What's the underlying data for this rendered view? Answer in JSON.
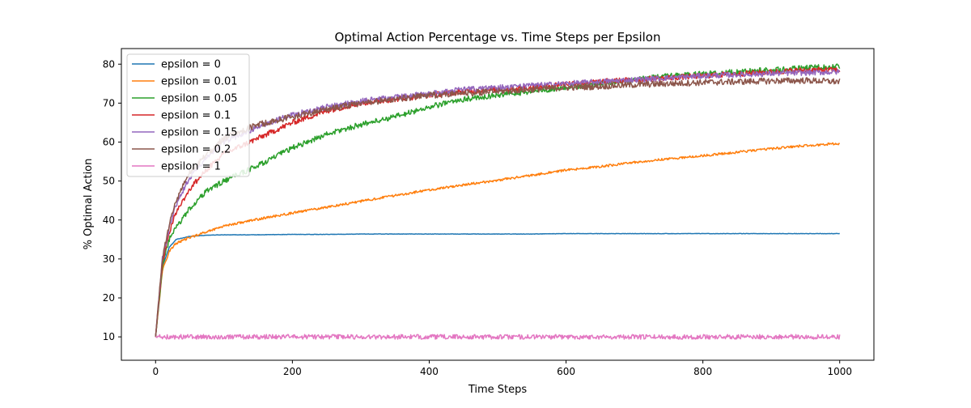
{
  "chart_data": {
    "type": "line",
    "title": "Optimal Action Percentage vs. Time Steps per Epsilon",
    "xlabel": "Time Steps",
    "ylabel": "% Optimal Action",
    "xlim": [
      -50,
      1050
    ],
    "ylim": [
      4,
      84
    ],
    "xticks": [
      0,
      200,
      400,
      600,
      800,
      1000
    ],
    "yticks": [
      10,
      20,
      30,
      40,
      50,
      60,
      70,
      80
    ],
    "grid": false,
    "legend_position": "upper left",
    "x": [
      0,
      10,
      20,
      30,
      50,
      75,
      100,
      150,
      200,
      250,
      300,
      350,
      400,
      450,
      500,
      550,
      600,
      650,
      700,
      750,
      800,
      850,
      900,
      950,
      1000
    ],
    "series": [
      {
        "name": "epsilon = 0",
        "color": "#1f77b4",
        "noise": 0.05,
        "values": [
          10,
          28,
          33,
          35,
          35.8,
          36.1,
          36.2,
          36.2,
          36.3,
          36.3,
          36.4,
          36.4,
          36.4,
          36.4,
          36.4,
          36.4,
          36.5,
          36.5,
          36.5,
          36.5,
          36.5,
          36.5,
          36.5,
          36.5,
          36.5
        ]
      },
      {
        "name": "epsilon = 0.01",
        "color": "#ff7f0e",
        "noise": 0.3,
        "values": [
          10,
          27,
          32,
          34,
          35.5,
          37,
          38.5,
          40.2,
          41.8,
          43.3,
          44.8,
          46.3,
          47.7,
          49,
          50.2,
          51.5,
          52.8,
          53.7,
          54.8,
          55.7,
          56.5,
          57.4,
          58.3,
          59.1,
          59.6
        ]
      },
      {
        "name": "epsilon = 0.05",
        "color": "#2ca02c",
        "noise": 0.7,
        "values": [
          10,
          28,
          35,
          38,
          43,
          47.5,
          50,
          54,
          58.5,
          62,
          64.5,
          66.5,
          69,
          71,
          72,
          73,
          74,
          75,
          76,
          77,
          77.5,
          78,
          78.5,
          79,
          79.5
        ]
      },
      {
        "name": "epsilon = 0.1",
        "color": "#d62728",
        "noise": 0.7,
        "values": [
          10,
          29,
          37,
          42,
          48,
          53,
          57,
          61,
          65,
          68,
          70,
          71,
          72,
          73,
          73.5,
          74,
          75,
          75.5,
          76,
          76.5,
          77,
          77.5,
          78,
          78.5,
          78.5
        ]
      },
      {
        "name": "epsilon = 0.15",
        "color": "#9467bd",
        "noise": 0.7,
        "values": [
          10,
          30,
          38,
          44,
          51,
          56,
          60,
          64,
          67,
          69,
          70.5,
          71.5,
          72.5,
          73.5,
          74,
          74.5,
          75,
          75.5,
          76,
          76.5,
          77,
          77.3,
          77.6,
          77.8,
          78
        ]
      },
      {
        "name": "epsilon = 0.2",
        "color": "#8c564b",
        "noise": 0.8,
        "values": [
          10,
          30,
          39,
          45,
          52,
          57,
          61,
          64.5,
          66.5,
          68.5,
          70,
          71,
          72,
          72.5,
          73,
          73.5,
          74,
          74.3,
          74.7,
          75,
          75.3,
          75.5,
          75.7,
          75.8,
          75.5
        ]
      },
      {
        "name": "epsilon = 1",
        "color": "#e377c2",
        "noise": 0.6,
        "values": [
          10,
          10,
          10,
          10,
          10,
          10,
          10,
          10,
          10,
          10,
          10,
          10,
          10,
          10,
          10,
          10,
          10,
          10,
          10,
          10,
          10,
          10,
          10,
          10,
          10
        ]
      }
    ]
  }
}
